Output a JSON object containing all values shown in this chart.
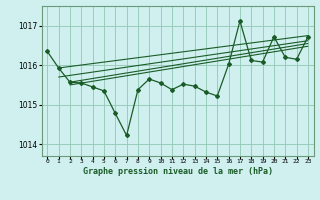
{
  "xlabel_label": "Graphe pression niveau de la mer (hPa)",
  "background_color": "#cff0ee",
  "plot_bg_color": "#cff0ee",
  "grid_color": "#99ccbb",
  "line_color": "#1a5c28",
  "spine_color": "#6a9a7a",
  "ylim": [
    1013.7,
    1017.5
  ],
  "xlim": [
    -0.5,
    23.5
  ],
  "yticks": [
    1014,
    1015,
    1016,
    1017
  ],
  "xtick_labels": [
    "0",
    "1",
    "2",
    "3",
    "4",
    "5",
    "6",
    "7",
    "8",
    "9",
    "10",
    "11",
    "12",
    "13",
    "14",
    "15",
    "16",
    "17",
    "18",
    "19",
    "20",
    "21",
    "22",
    "23"
  ],
  "main_data": {
    "x": [
      0,
      1,
      2,
      3,
      4,
      5,
      6,
      7,
      8,
      9,
      10,
      11,
      12,
      13,
      14,
      15,
      16,
      17,
      18,
      19,
      20,
      21,
      22,
      23
    ],
    "y": [
      1016.35,
      1015.93,
      1015.57,
      1015.55,
      1015.45,
      1015.35,
      1014.78,
      1014.22,
      1015.38,
      1015.65,
      1015.55,
      1015.38,
      1015.52,
      1015.47,
      1015.32,
      1015.22,
      1016.02,
      1017.12,
      1016.12,
      1016.08,
      1016.72,
      1016.2,
      1016.15,
      1016.72
    ]
  },
  "trend_lines": [
    {
      "x": [
        1,
        23
      ],
      "y": [
        1015.93,
        1016.75
      ]
    },
    {
      "x": [
        1,
        23
      ],
      "y": [
        1015.7,
        1016.62
      ]
    },
    {
      "x": [
        2,
        23
      ],
      "y": [
        1015.57,
        1016.55
      ]
    },
    {
      "x": [
        2,
        23
      ],
      "y": [
        1015.5,
        1016.48
      ]
    }
  ]
}
